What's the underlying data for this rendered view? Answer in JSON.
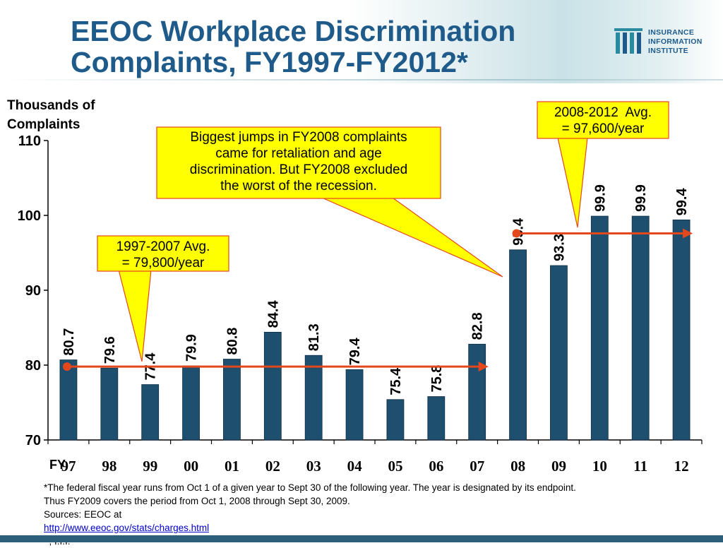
{
  "slide": {
    "title_line1": "EEOC Workplace Discrimination",
    "title_line2": "Complaints, FY1997-FY2012*",
    "logo": {
      "icon": "iii-columns-logo",
      "line1": "INSURANCE",
      "line2": "INFORMATION",
      "line3": "INSTITUTE"
    },
    "colors": {
      "title": "#1f5b8a",
      "bar": "#1e4f6e",
      "avg_line": "#e5471c",
      "callout_fill": "#ffff00",
      "callout_border": "#e5471c"
    }
  },
  "chart_data": {
    "type": "bar",
    "ylabel": "Thousands of Complaints",
    "xaxis_prefix": "FY",
    "categories": [
      "97",
      "98",
      "99",
      "00",
      "01",
      "02",
      "03",
      "04",
      "05",
      "06",
      "07",
      "08",
      "09",
      "10",
      "11",
      "12"
    ],
    "values": [
      80.7,
      79.6,
      77.4,
      79.9,
      80.8,
      84.4,
      81.3,
      79.4,
      75.4,
      75.8,
      82.8,
      95.4,
      93.3,
      99.9,
      99.9,
      99.4
    ],
    "data_labels": [
      "80.7",
      "79.6",
      "77.4",
      "79.9",
      "80.8",
      "84.4",
      "81.3",
      "79.4",
      "75.4",
      "75.8",
      "82.8",
      "95.4",
      "93.3",
      "99.9",
      "99.9",
      "99.4"
    ],
    "ylim": [
      70,
      110
    ],
    "yticks": [
      70,
      80,
      90,
      100,
      110
    ],
    "grid": false,
    "averages": [
      {
        "label": "1997-2007 Avg. = 79,800/year",
        "value": 79.8,
        "from": "97",
        "to": "07"
      },
      {
        "label": "2008-2012 Avg. = 97,600/year",
        "value": 97.6,
        "from": "08",
        "to": "12"
      }
    ]
  },
  "callouts": {
    "avg1_line1": "1997-2007 Avg.",
    "avg1_line2": "= 79,800/year",
    "jumps_line1": "Biggest jumps in FY2008 complaints",
    "jumps_line2": "came for retaliation and age",
    "jumps_line3": "discrimination. But FY2008 excluded",
    "jumps_line4": "the worst of the recession.",
    "avg2_line1": "2008-2012  Avg.",
    "avg2_line2": "= 97,600/year"
  },
  "footnote": {
    "line1": "*The federal fiscal year runs from Oct 1 of a given year to Sept 30 of the following year. The year is designated by its endpoint.",
    "line2": "Thus FY2009 covers the period from Oct 1, 2008 through Sept 30, 2009.",
    "sources_prefix": "Sources: EEOC at ",
    "link": "http://www.eeoc.gov/stats/charges.html",
    "sources_suffix": "  ; I.I.I."
  }
}
